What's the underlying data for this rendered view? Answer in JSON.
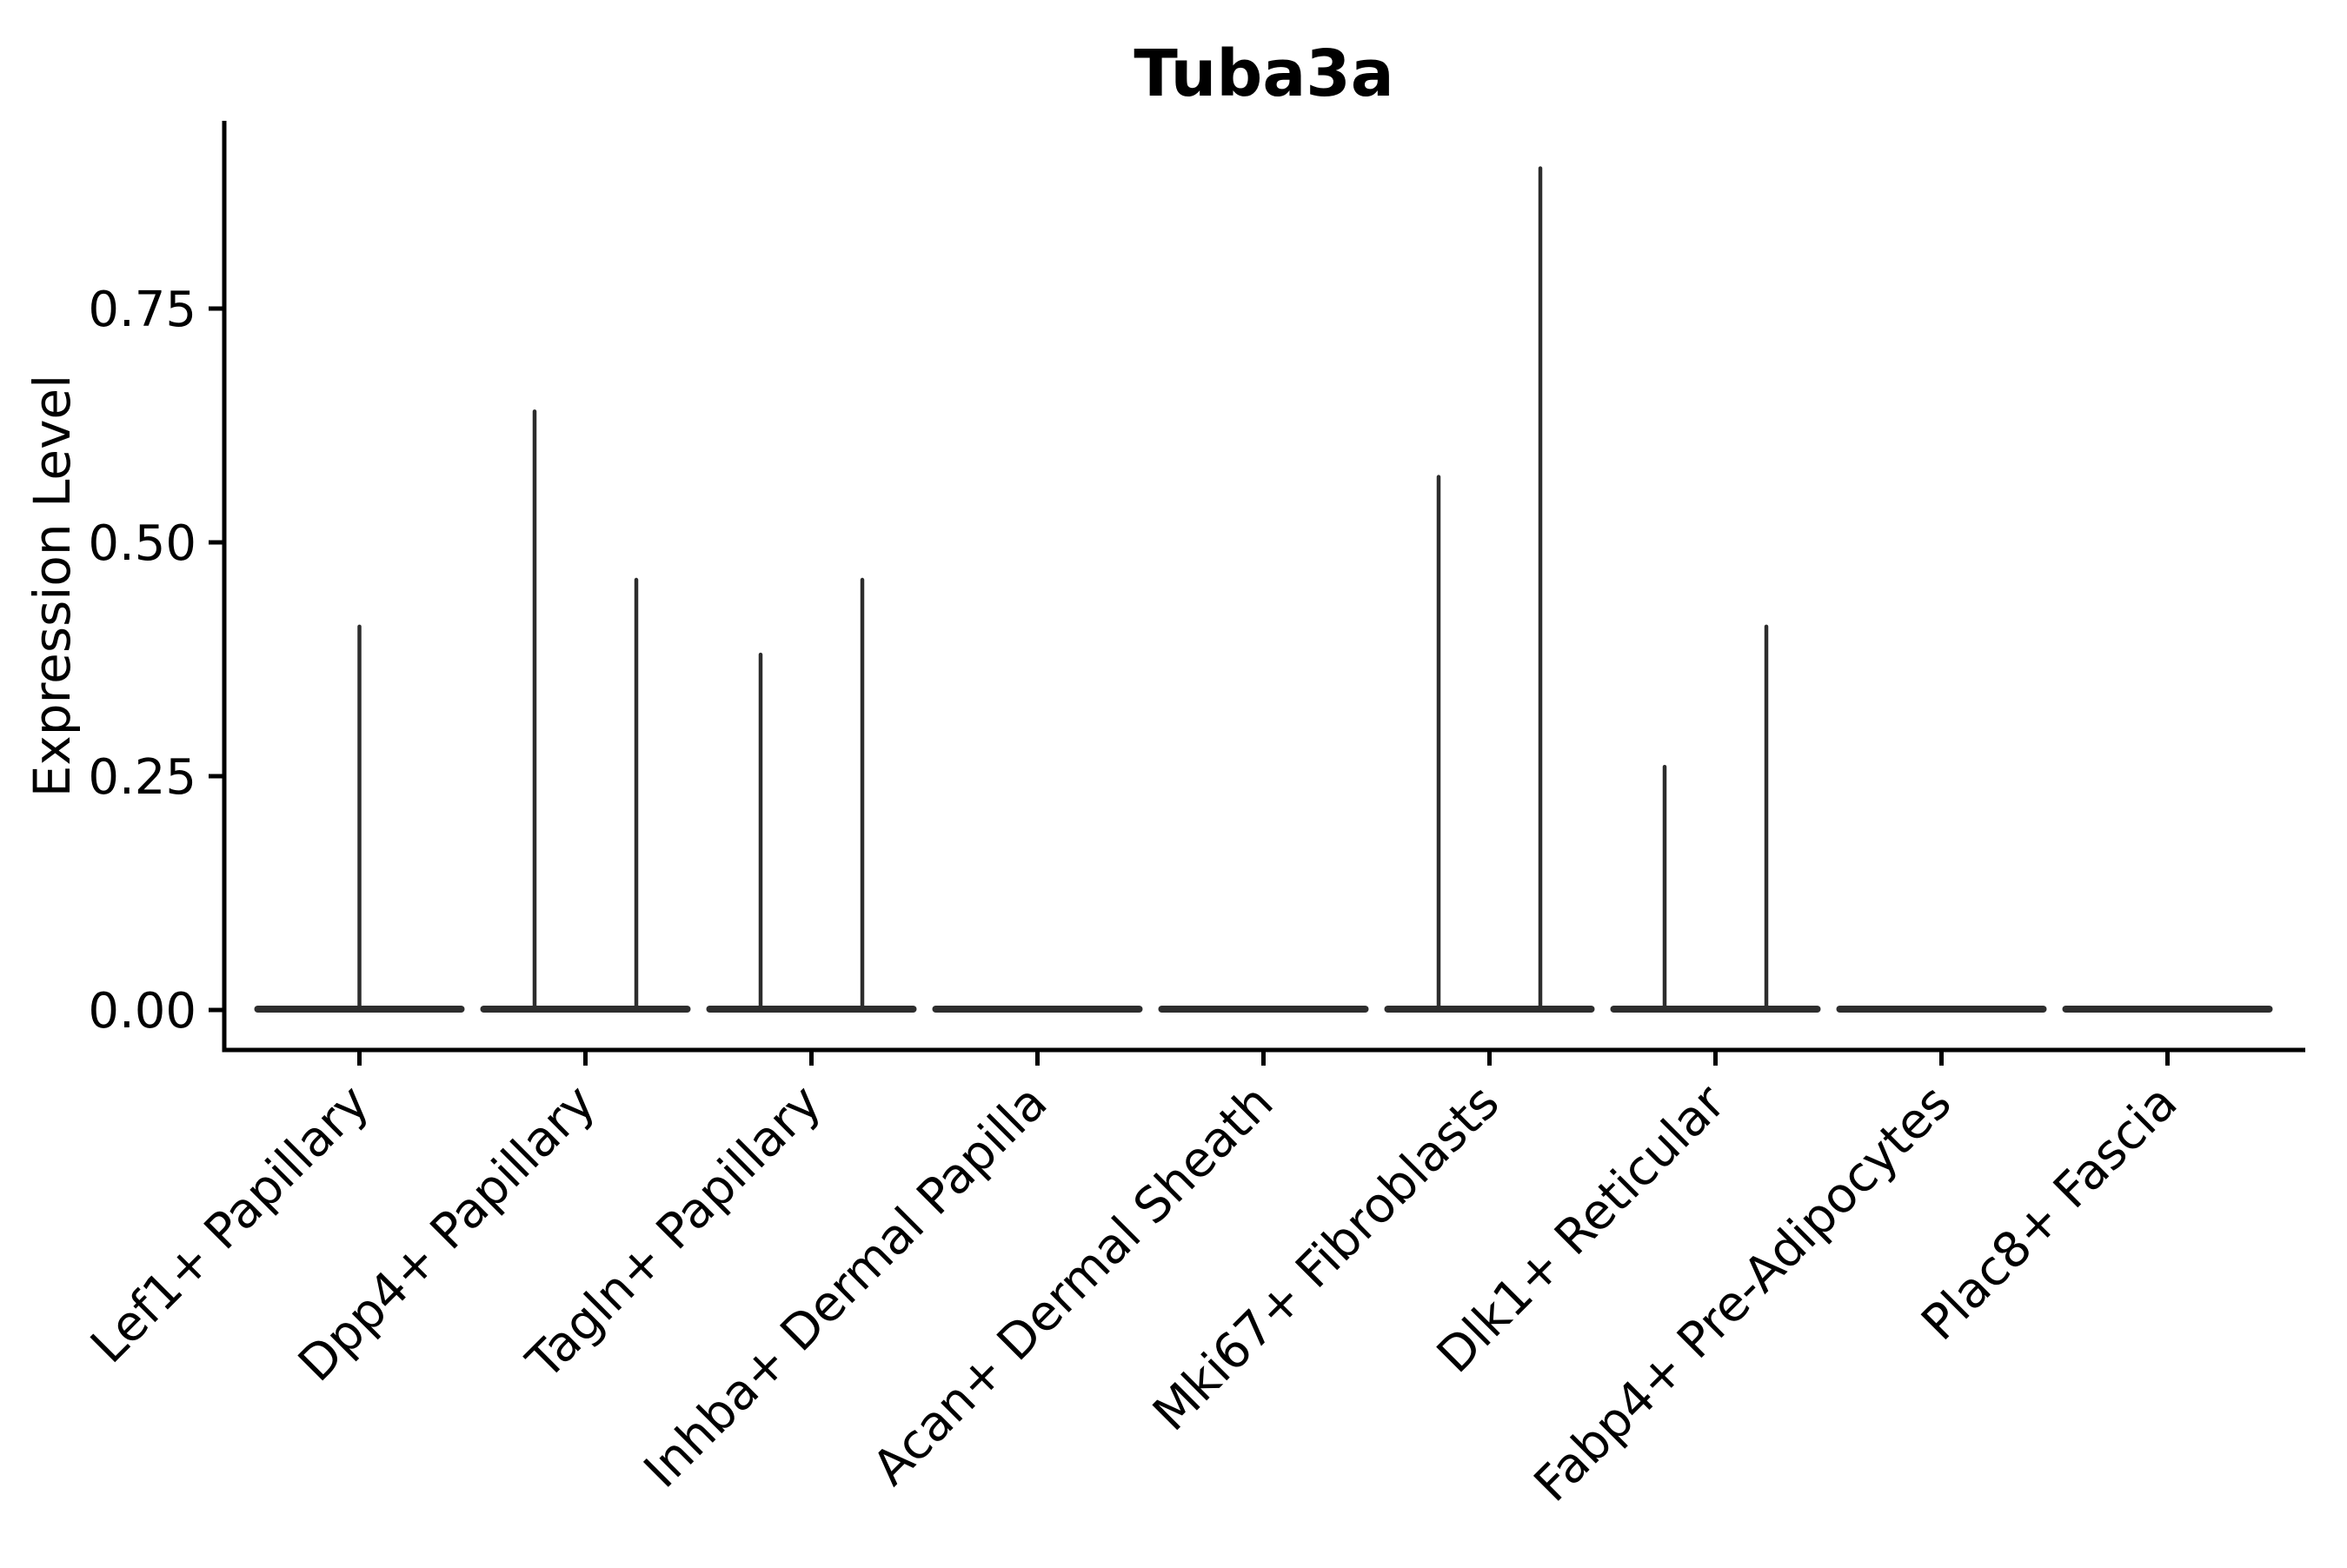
{
  "figure": {
    "background_color": "#ffffff",
    "text_color": "#000000",
    "axis_color": "#000000",
    "violin_color": "#2d2d2d"
  },
  "chart_data": {
    "type": "violin",
    "title": "Tuba3a",
    "xlabel": "",
    "ylabel": "Expression Level",
    "legend": "none",
    "grid": false,
    "ylim": [
      -0.043,
      0.951
    ],
    "ytick_values": [
      0.0,
      0.25,
      0.5,
      0.75
    ],
    "ytick_labels": [
      "0.00",
      "0.25",
      "0.50",
      "0.75"
    ],
    "categories": [
      "Lef1+ Papillary",
      "Dpp4+ Papillary",
      "Tagln+ Papillary",
      "Inhba+ Dermal Papilla",
      "Acan+ Dermal Sheath",
      "Mki67+ Fibroblasts",
      "Dlk1+ Reticular",
      "Fabp4+ Pre-Adipocytes",
      "Plac8+ Fascia"
    ],
    "violins": [
      {
        "category": "Lef1+ Papillary",
        "baseline_value": 0,
        "spikes": [
          {
            "offset_frac": 0.0,
            "max_expression": 0.41
          }
        ]
      },
      {
        "category": "Dpp4+ Papillary",
        "baseline_value": 0,
        "spikes": [
          {
            "offset_frac": -0.225,
            "max_expression": 0.64
          },
          {
            "offset_frac": 0.225,
            "max_expression": 0.46
          }
        ]
      },
      {
        "category": "Tagln+ Papillary",
        "baseline_value": 0,
        "spikes": [
          {
            "offset_frac": -0.225,
            "max_expression": 0.38
          },
          {
            "offset_frac": 0.225,
            "max_expression": 0.46
          }
        ]
      },
      {
        "category": "Inhba+ Dermal Papilla",
        "baseline_value": 0,
        "spikes": []
      },
      {
        "category": "Acan+ Dermal Sheath",
        "baseline_value": 0,
        "spikes": []
      },
      {
        "category": "Mki67+ Fibroblasts",
        "baseline_value": 0,
        "spikes": [
          {
            "offset_frac": -0.225,
            "max_expression": 0.57
          },
          {
            "offset_frac": 0.225,
            "max_expression": 0.9
          }
        ]
      },
      {
        "category": "Dlk1+ Reticular",
        "baseline_value": 0,
        "spikes": [
          {
            "offset_frac": -0.225,
            "max_expression": 0.26
          },
          {
            "offset_frac": 0.225,
            "max_expression": 0.41
          }
        ]
      },
      {
        "category": "Fabp4+ Pre-Adipocytes",
        "baseline_value": 0,
        "spikes": []
      },
      {
        "category": "Plac8+ Fascia",
        "baseline_value": 0,
        "spikes": []
      }
    ]
  }
}
